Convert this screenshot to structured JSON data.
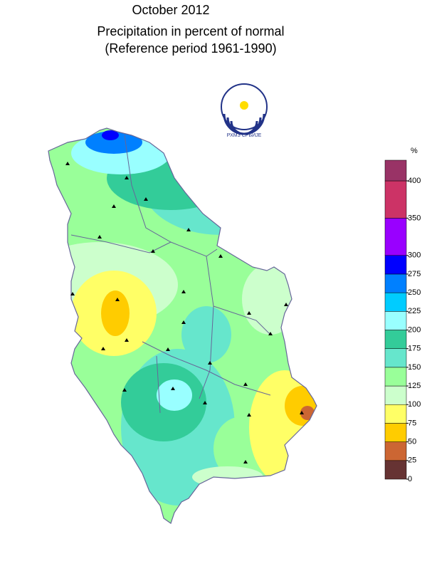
{
  "title": {
    "line1": "October 2012",
    "line2": "Precipitation in percent of normal",
    "line3": "(Reference period 1961-1990)"
  },
  "logo": {
    "caption": "РХМЗ СРБИЈЕ"
  },
  "legend": {
    "unit": "%",
    "ticks": [
      0,
      25,
      50,
      75,
      100,
      125,
      150,
      175,
      200,
      225,
      250,
      275,
      300,
      350,
      400
    ],
    "colors": [
      "#663333",
      "#cc6633",
      "#ffcc00",
      "#ffff66",
      "#ccffcc",
      "#99ff99",
      "#66e6cc",
      "#33cc99",
      "#99ffff",
      "#00ccff",
      "#0080ff",
      "#0000ff",
      "#9900ff",
      "#cc3366",
      "#993366"
    ]
  }
}
